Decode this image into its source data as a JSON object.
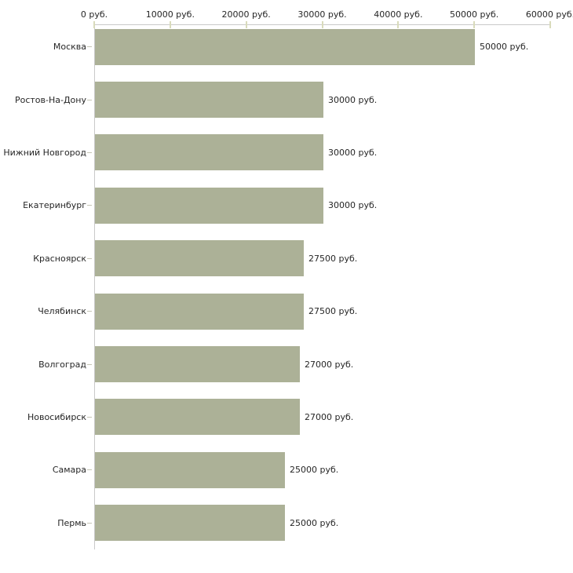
{
  "chart_data": {
    "type": "bar",
    "orientation": "horizontal",
    "title": "",
    "xlabel": "",
    "ylabel": "",
    "unit_suffix": " руб.",
    "categories": [
      "Москва",
      "Ростов-На-Дону",
      "Нижний Новгород",
      "Екатеринбург",
      "Красноярск",
      "Челябинск",
      "Волгоград",
      "Новосибирск",
      "Самара",
      "Пермь"
    ],
    "values": [
      50000,
      30000,
      30000,
      30000,
      27500,
      27500,
      27000,
      27000,
      25000,
      25000
    ],
    "bar_labels": [
      "50000 руб.",
      "30000 руб.",
      "30000 руб.",
      "30000 руб.",
      "27500 руб.",
      "27500 руб.",
      "27000 руб.",
      "27000 руб.",
      "25000 руб.",
      "25000 руб."
    ],
    "x_ticks": [
      {
        "value": 0,
        "label": "0 руб."
      },
      {
        "value": 10000,
        "label": "10000 руб."
      },
      {
        "value": 20000,
        "label": "20000 руб."
      },
      {
        "value": 30000,
        "label": "30000 руб."
      },
      {
        "value": 40000,
        "label": "40000 руб."
      },
      {
        "value": 50000,
        "label": "50000 руб."
      },
      {
        "value": 60000,
        "label": "60000 руб."
      }
    ],
    "xlim": [
      0,
      60000
    ],
    "grid": false,
    "legend": false,
    "tick_labels_position": "top",
    "colors": {
      "bar_fill": "#acb197",
      "axis_line": "#c9c9c9",
      "x_tick_mark": "#d9dbbb",
      "category_tick_mark": "#c6c6b6",
      "text": "#262626",
      "background": "#ffffff"
    }
  }
}
